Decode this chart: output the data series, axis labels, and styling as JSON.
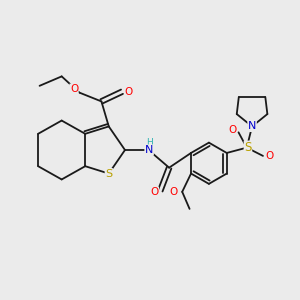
{
  "bg_color": "#ebebeb",
  "bond_color": "#1a1a1a",
  "colors": {
    "O": "#ff0000",
    "N": "#0000cd",
    "S_thio": "#b8a000",
    "S_sulfonyl": "#b8a000",
    "H": "#2ab0b0",
    "C": "#1a1a1a"
  },
  "lw": 1.3,
  "lw_thick": 1.3,
  "fs": 7.0
}
